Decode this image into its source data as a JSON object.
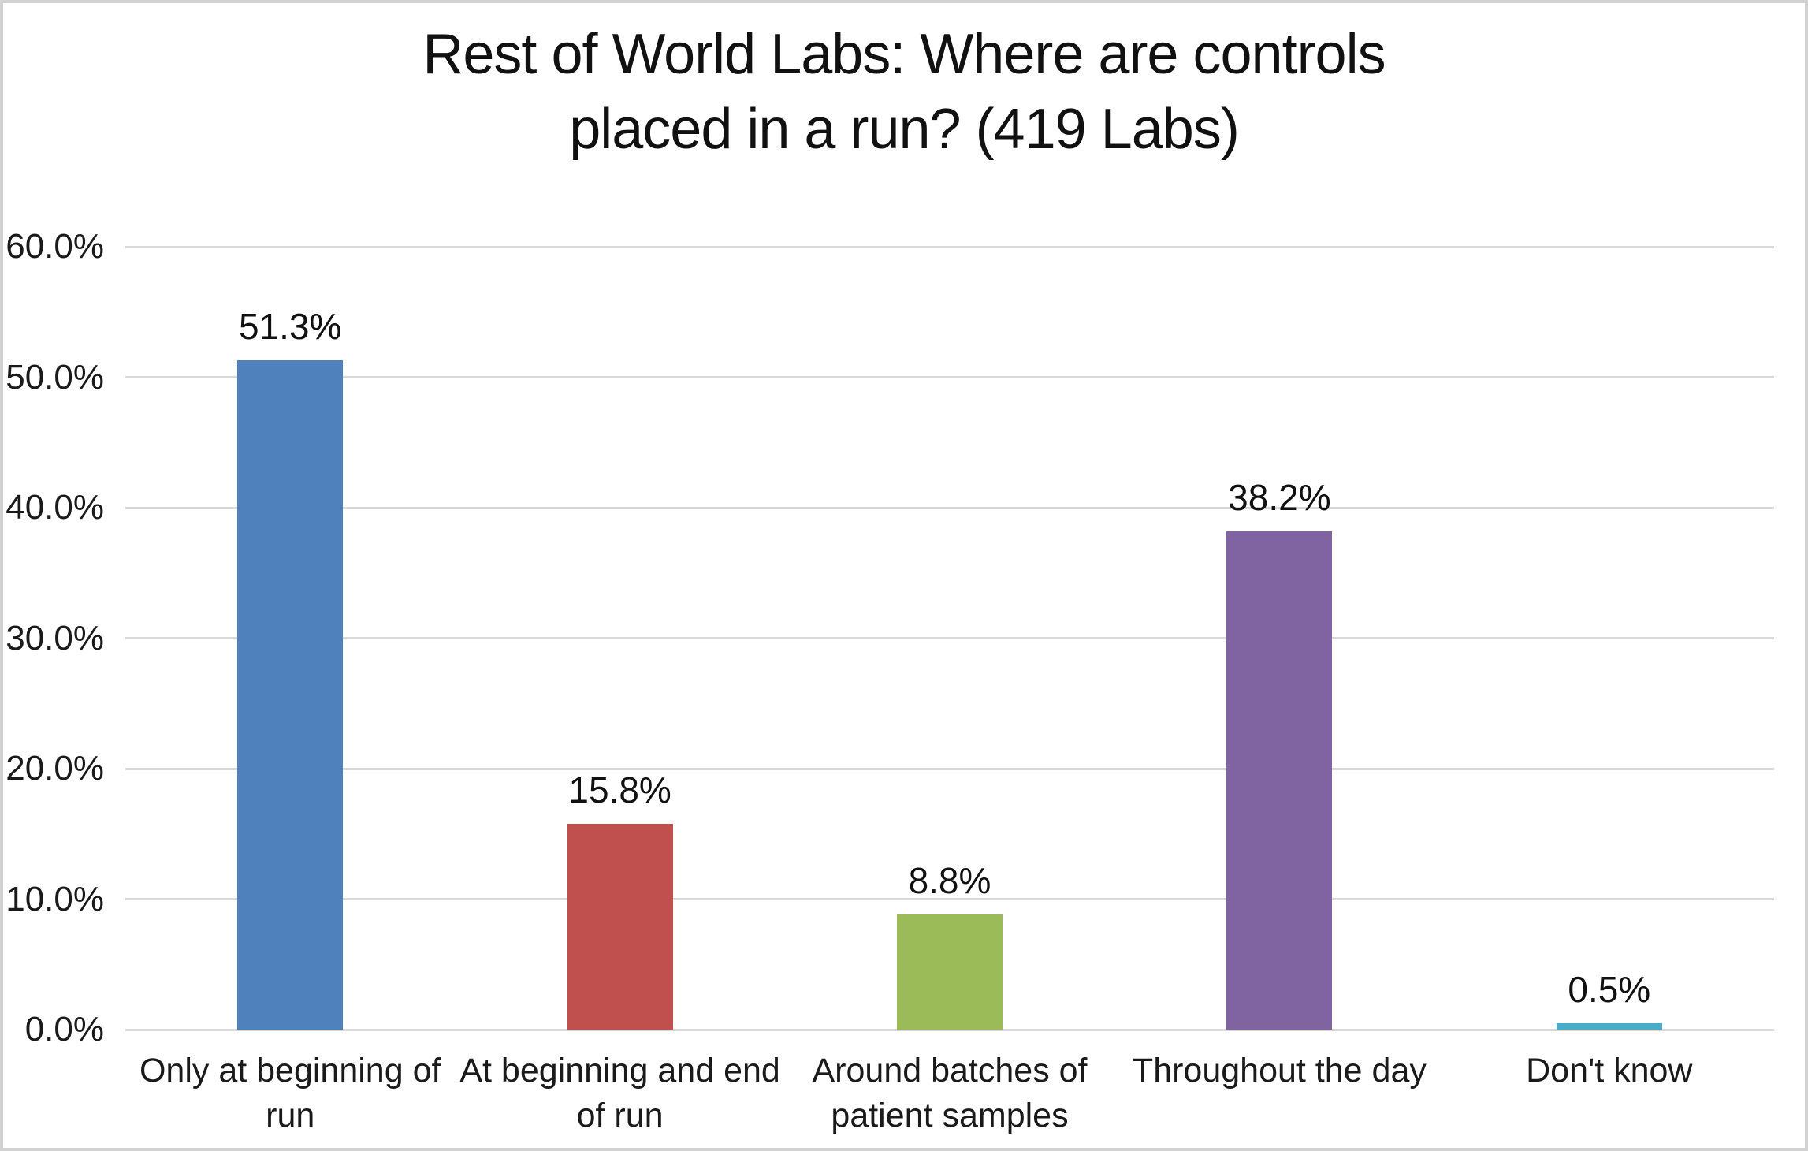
{
  "title": "Rest of World Labs: Where are controls\nplaced in a run? (419 Labs)",
  "chart_data": {
    "type": "bar",
    "title": "Rest of World Labs: Where are controls placed in a run? (419 Labs)",
    "categories": [
      "Only at  beginning of run",
      "At beginning and end of run",
      "Around batches of patient samples",
      "Throughout the day",
      "Don't know"
    ],
    "categories_wrapped": [
      "Only at  beginning of\nrun",
      "At beginning and end\nof run",
      "Around batches of\npatient samples",
      "Throughout the day",
      "Don't know"
    ],
    "values": [
      51.3,
      15.8,
      8.8,
      38.2,
      0.5
    ],
    "data_labels": [
      "51.3%",
      "15.8%",
      "8.8%",
      "38.2%",
      "0.5%"
    ],
    "bar_colors": [
      "#4f81bd",
      "#c0504d",
      "#9bbb59",
      "#8064a2",
      "#4bacc6"
    ],
    "xlabel": "",
    "ylabel": "",
    "ylim": [
      0,
      60
    ],
    "ytick_values": [
      0,
      10,
      20,
      30,
      40,
      50,
      60
    ],
    "ytick_labels": [
      "0.0%",
      "10.0%",
      "20.0%",
      "30.0%",
      "40.0%",
      "50.0%",
      "60.0%"
    ],
    "grid": "horizontal",
    "legend": "none",
    "gridline_color": "#d9d9d9",
    "background": "#ffffff",
    "border_color": "#d2d2d2"
  }
}
